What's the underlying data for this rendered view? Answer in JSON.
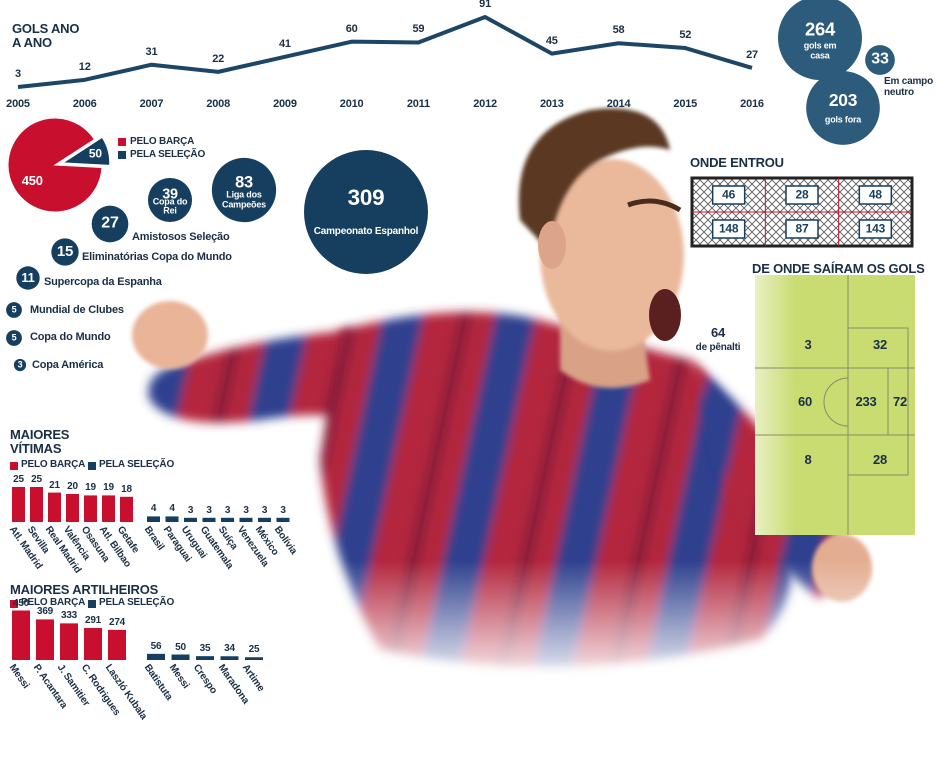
{
  "chart_data": [
    {
      "type": "line",
      "title": "GOLS ANO A ANO",
      "x": [
        "2005",
        "2006",
        "2007",
        "2008",
        "2009",
        "2010",
        "2011",
        "2012",
        "2013",
        "2014",
        "2015",
        "2016"
      ],
      "values": [
        3,
        12,
        31,
        22,
        41,
        60,
        59,
        91,
        45,
        58,
        52,
        27
      ],
      "color": "#1c4566"
    },
    {
      "type": "bubble",
      "categories": [
        "gols em casa",
        "Em campo neutro",
        "gols fora"
      ],
      "values": [
        264,
        33,
        203
      ],
      "color": "#2d5b7c"
    },
    {
      "type": "pie",
      "categories": [
        "PELO BARÇA",
        "PELA SELEÇÃO"
      ],
      "values": [
        450,
        50
      ],
      "colors": [
        "#c8102e",
        "#163f5f"
      ]
    },
    {
      "type": "bubble",
      "categories": [
        "Campeonato Espanhol",
        "Liga dos Campeões",
        "Copa do Rei",
        "Amistosos Seleção",
        "Eliminatórias Copa do Mundo",
        "Supercopa da Espanha",
        "Mundial de Clubes",
        "Copa do Mundo",
        "Copa América"
      ],
      "values": [
        309,
        83,
        39,
        27,
        15,
        11,
        5,
        5,
        3
      ],
      "color": "#163f5f"
    },
    {
      "type": "goal",
      "title": "ONDE ENTROU",
      "values": [
        46,
        28,
        48,
        148,
        87,
        143
      ],
      "color": "#163f5f"
    },
    {
      "type": "field",
      "title": "DE ONDE SAÍRAM OS GOLS",
      "values": [
        3,
        32,
        60,
        233,
        72,
        8,
        28
      ],
      "penalty": {
        "value": 64,
        "label": "de pênalti"
      },
      "color": "#c9dc72"
    },
    {
      "type": "bar",
      "title": "MAIORES VÍTIMAS",
      "categories": [
        "Atl. Madrid",
        "Sevilla",
        "Real Madrid",
        "Valência",
        "Osasuna",
        "Atl. Bilbao",
        "Getafe",
        "Brasil",
        "Paraguai",
        "Uruguai",
        "Guatemala",
        "Suíça",
        "Venezuela",
        "México",
        "Bolívia"
      ],
      "series": [
        {
          "name": "PELO BARÇA",
          "color": "#c8102e",
          "values": [
            25,
            25,
            21,
            20,
            19,
            19,
            18,
            null,
            null,
            null,
            null,
            null,
            null,
            null,
            null
          ]
        },
        {
          "name": "PELA SELEÇÃO",
          "color": "#163f5f",
          "values": [
            null,
            null,
            null,
            null,
            null,
            null,
            null,
            4,
            4,
            3,
            3,
            3,
            3,
            3,
            3
          ]
        }
      ]
    },
    {
      "type": "bar",
      "title": "MAIORES ARTILHEIROS",
      "categories": [
        "Messi",
        "P. Acantara",
        "J. Samitier",
        "C. Rodrigues",
        "Laszló Kubala",
        "Batistuta",
        "Messi",
        "Crespo",
        "Maradona",
        "Artime"
      ],
      "series": [
        {
          "name": "PELO BARÇA",
          "color": "#c8102e",
          "values": [
            450,
            369,
            333,
            291,
            274,
            null,
            null,
            null,
            null,
            null
          ]
        },
        {
          "name": "PELA SELEÇÃO",
          "color": "#163f5f",
          "values": [
            null,
            null,
            null,
            null,
            null,
            56,
            50,
            35,
            34,
            25
          ]
        }
      ]
    }
  ]
}
